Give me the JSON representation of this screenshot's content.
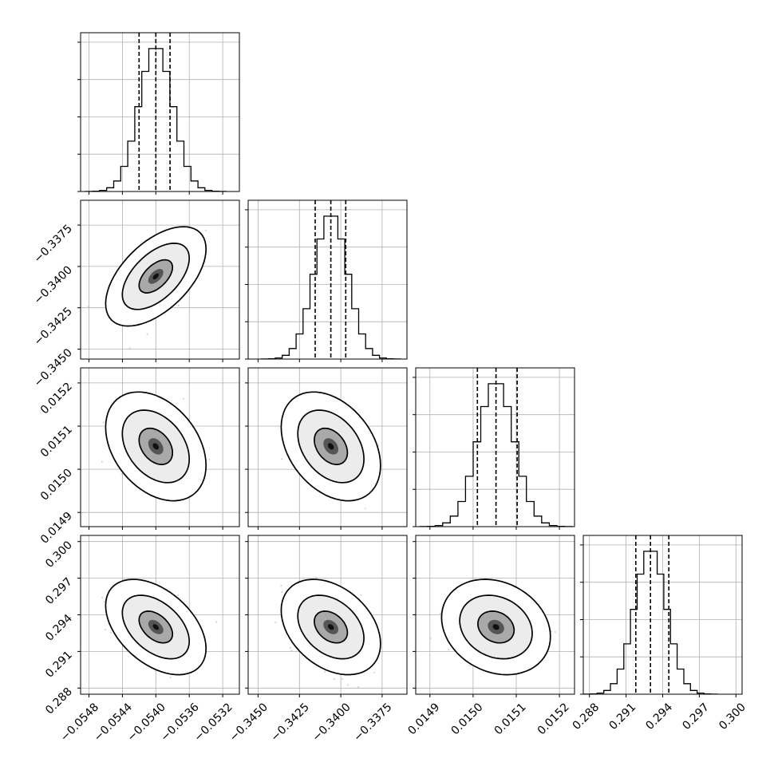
{
  "chart_data": {
    "type": "corner",
    "parameters": 4,
    "axes": [
      {
        "range": [
          -0.0549,
          -0.053
        ],
        "ticks": [
          -0.0548,
          -0.0544,
          -0.054,
          -0.0536,
          -0.0532
        ],
        "tick_labels": [
          "−0.0548",
          "−0.0544",
          "−0.0540",
          "−0.0536",
          "−0.0532"
        ],
        "mean": -0.054,
        "std": 0.0002,
        "quantiles": [
          -0.0542,
          -0.054,
          -0.05383
        ]
      },
      {
        "range": [
          -0.3456,
          -0.336
        ],
        "ticks": [
          -0.345,
          -0.3425,
          -0.34,
          -0.3375
        ],
        "tick_labels": [
          "−0.3450",
          "−0.3425",
          "−0.3400",
          "−0.3375"
        ],
        "mean": -0.3406,
        "std": 0.001,
        "quantiles": [
          -0.34155,
          -0.3406,
          -0.3397
        ]
      },
      {
        "range": [
          0.014867,
          0.015235
        ],
        "ticks": [
          0.0149,
          0.015,
          0.0151,
          0.0152
        ],
        "tick_labels": [
          "0.0149",
          "0.0150",
          "0.0151",
          "0.0152"
        ],
        "mean": 0.015053,
        "std": 4.2e-05,
        "quantiles": [
          0.01501,
          0.015053,
          0.015102
        ]
      },
      {
        "range": [
          0.2875,
          0.3005
        ],
        "ticks": [
          0.288,
          0.291,
          0.294,
          0.297,
          0.3
        ],
        "tick_labels": [
          "0.288",
          "0.291",
          "0.294",
          "0.297",
          "0.300"
        ],
        "mean": 0.293,
        "std": 0.0013,
        "quantiles": [
          0.2918,
          0.293,
          0.2945
        ]
      }
    ],
    "correlations": {
      "1-0": 0.55,
      "2-0": -0.35,
      "2-1": -0.35,
      "3-0": -0.45,
      "3-1": -0.35,
      "3-2": -0.2
    },
    "grid": true,
    "xlabel": "",
    "ylabel": "",
    "title": ""
  }
}
